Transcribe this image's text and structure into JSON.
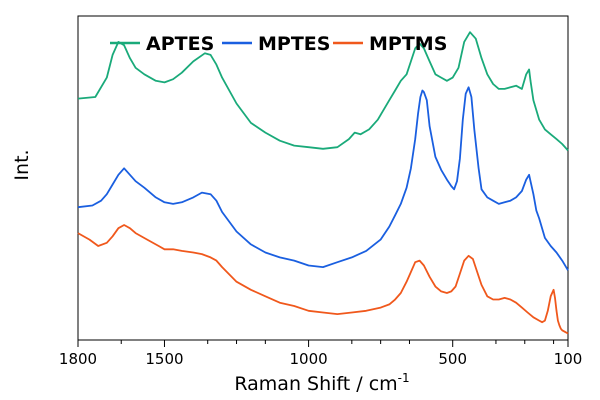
{
  "chart_data": {
    "type": "line",
    "title": "",
    "xlabel": "Raman Shift / cm",
    "xlabel_sup": "-1",
    "ylabel": "Int.",
    "xlim": [
      1800,
      100
    ],
    "x_reversed": true,
    "ylim": [
      0,
      100
    ],
    "y_ticks_labeled": false,
    "grid": false,
    "legend_position": "top-left",
    "xticks": [
      {
        "value": 1800,
        "label": "1800"
      },
      {
        "value": 1500,
        "label": "1500"
      },
      {
        "value": 1000,
        "label": "1000"
      },
      {
        "value": 500,
        "label": "500"
      },
      {
        "value": 100,
        "label": "100"
      }
    ],
    "minor_xticks": [
      1650,
      1350,
      1250,
      1150,
      850,
      750,
      650,
      350,
      250,
      150
    ],
    "series": [
      {
        "name": "APTES",
        "color": "#1aaa7a",
        "x": [
          1800,
          1740,
          1700,
          1680,
          1660,
          1640,
          1620,
          1600,
          1570,
          1530,
          1500,
          1470,
          1440,
          1400,
          1360,
          1340,
          1320,
          1300,
          1250,
          1200,
          1150,
          1100,
          1050,
          1000,
          950,
          900,
          860,
          840,
          820,
          790,
          760,
          720,
          700,
          680,
          660,
          645,
          630,
          615,
          600,
          580,
          560,
          540,
          520,
          500,
          480,
          460,
          440,
          420,
          400,
          380,
          360,
          340,
          320,
          300,
          280,
          260,
          245,
          235,
          230,
          220,
          210,
          200,
          180,
          160,
          140,
          120,
          100
        ],
        "y": [
          74.5,
          75.0,
          81.0,
          88.0,
          92.0,
          91.0,
          87.0,
          84.0,
          82.0,
          80.0,
          79.5,
          80.5,
          82.5,
          86.0,
          88.5,
          88.0,
          85.0,
          81.0,
          73.0,
          67.0,
          64.0,
          61.5,
          60.0,
          59.5,
          59.0,
          59.5,
          62.0,
          64.0,
          63.5,
          65.0,
          68.0,
          74.0,
          77.0,
          80.0,
          82.0,
          86.0,
          90.0,
          91.5,
          90.0,
          86.0,
          82.0,
          81.0,
          80.0,
          81.0,
          84.0,
          92.0,
          95.0,
          93.0,
          87.0,
          82.0,
          79.0,
          77.5,
          77.5,
          78.0,
          78.5,
          77.5,
          82.0,
          83.5,
          80.0,
          74.0,
          71.0,
          68.0,
          65.0,
          63.5,
          62.0,
          60.5,
          58.5
        ]
      },
      {
        "name": "MPTES",
        "color": "#1a5fe0",
        "x": [
          1800,
          1750,
          1720,
          1700,
          1680,
          1660,
          1640,
          1620,
          1600,
          1570,
          1530,
          1500,
          1470,
          1440,
          1400,
          1370,
          1340,
          1320,
          1300,
          1250,
          1200,
          1150,
          1100,
          1050,
          1000,
          950,
          900,
          850,
          800,
          750,
          720,
          700,
          680,
          660,
          645,
          630,
          620,
          612,
          605,
          600,
          590,
          580,
          560,
          540,
          520,
          505,
          495,
          485,
          475,
          465,
          455,
          445,
          435,
          425,
          410,
          400,
          380,
          360,
          340,
          320,
          300,
          280,
          260,
          245,
          235,
          230,
          220,
          210,
          200,
          180,
          160,
          140,
          120,
          100
        ],
        "y": [
          41.0,
          41.5,
          43.0,
          45.0,
          48.0,
          51.0,
          53.0,
          51.0,
          49.0,
          47.0,
          44.0,
          42.5,
          42.0,
          42.5,
          44.0,
          45.5,
          45.0,
          43.0,
          39.5,
          33.5,
          29.5,
          27.0,
          25.5,
          24.5,
          23.0,
          22.5,
          24.0,
          25.5,
          27.5,
          31.0,
          35.0,
          38.5,
          42.0,
          47.0,
          53.0,
          62.0,
          70.0,
          75.0,
          77.0,
          76.5,
          74.0,
          66.0,
          56.5,
          52.5,
          49.5,
          47.5,
          46.5,
          49.0,
          56.0,
          68.0,
          76.0,
          78.0,
          75.0,
          65.0,
          53.0,
          46.5,
          44.0,
          43.0,
          42.0,
          42.5,
          43.0,
          44.0,
          46.0,
          49.5,
          51.0,
          49.0,
          45.0,
          40.0,
          37.5,
          31.5,
          29.0,
          27.0,
          24.5,
          21.5
        ]
      },
      {
        "name": "MPTMS",
        "color": "#f0581c",
        "x": [
          1800,
          1760,
          1730,
          1700,
          1680,
          1660,
          1640,
          1620,
          1600,
          1560,
          1520,
          1500,
          1470,
          1440,
          1400,
          1370,
          1340,
          1320,
          1300,
          1250,
          1200,
          1150,
          1100,
          1050,
          1000,
          950,
          900,
          850,
          800,
          750,
          720,
          700,
          680,
          660,
          645,
          630,
          615,
          600,
          580,
          560,
          540,
          520,
          505,
          490,
          475,
          460,
          445,
          430,
          415,
          400,
          380,
          360,
          340,
          320,
          300,
          280,
          260,
          240,
          220,
          200,
          190,
          180,
          170,
          160,
          150,
          145,
          140,
          135,
          130,
          125,
          120,
          110,
          100
        ],
        "y": [
          33.0,
          31.0,
          29.0,
          30.0,
          32.0,
          34.5,
          35.5,
          34.5,
          33.0,
          31.0,
          29.0,
          28.0,
          28.0,
          27.5,
          27.0,
          26.5,
          25.5,
          24.5,
          22.5,
          18.0,
          15.5,
          13.5,
          11.5,
          10.5,
          9.0,
          8.5,
          8.0,
          8.5,
          9.0,
          10.0,
          11.0,
          12.5,
          14.5,
          18.0,
          21.0,
          24.0,
          24.5,
          23.0,
          19.5,
          16.5,
          15.0,
          14.5,
          15.0,
          16.5,
          20.5,
          24.5,
          26.0,
          25.0,
          21.0,
          17.0,
          13.5,
          12.5,
          12.5,
          13.0,
          12.5,
          11.5,
          10.0,
          8.5,
          7.0,
          6.0,
          5.5,
          6.0,
          9.0,
          13.5,
          15.5,
          13.0,
          9.0,
          6.0,
          4.5,
          3.5,
          3.0,
          2.5,
          2.0
        ]
      }
    ]
  }
}
